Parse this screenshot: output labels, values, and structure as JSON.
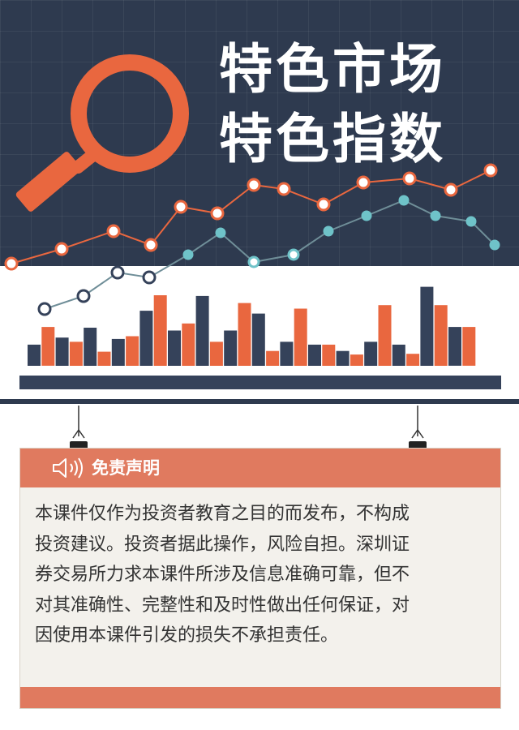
{
  "banner": {
    "title_line1": "特色市场",
    "title_line2": "特色指数"
  },
  "colors": {
    "navy": "#2e3a4f",
    "orange": "#e9673f",
    "bar_navy": "#35425a",
    "teal_line": "#6f8e98",
    "accent_header": "#e07a5f"
  },
  "icons": {
    "magnifier": "magnifying-glass-icon",
    "speaker": "speaker-icon",
    "clip": "binder-clip-icon"
  },
  "chart_data": {
    "type": "bar",
    "series": [
      {
        "values": [
          3,
          5.5,
          4,
          3.4,
          5.4,
          2,
          3.8,
          4.2,
          7.8,
          10,
          5,
          6,
          9.9,
          3.4,
          5,
          8.9,
          7.4,
          2.1,
          3.4,
          8.1,
          3,
          3,
          2.1,
          1.6,
          3.4,
          8.6,
          3,
          1.7,
          11.2,
          8.6,
          5.5,
          5.5
        ]
      }
    ]
  },
  "notice": {
    "title": "免责声明",
    "lines": [
      "本课件仅作为投资者教育之目的而发布，不构成",
      "投资建议。投资者据此操作，风险自担。深圳证",
      "券交易所力求本课件所涉及信息准确可靠，但不",
      "对其准确性、完整性和及时性做出任何保证，对",
      "因使用本课件引发的损失不承担责任。"
    ]
  }
}
